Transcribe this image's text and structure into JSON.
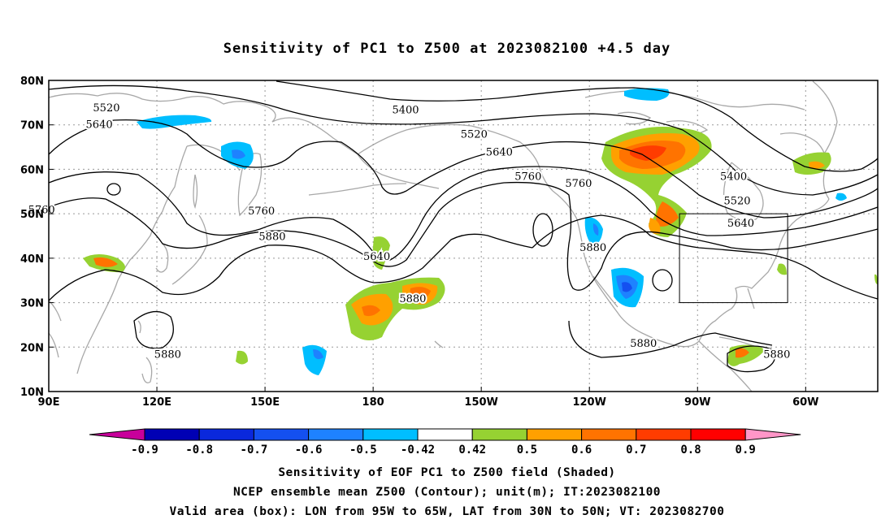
{
  "title": "Sensitivity of PC1 to Z500 at 2023082100 +4.5 day",
  "map": {
    "lat_labels": [
      "80N",
      "70N",
      "60N",
      "50N",
      "40N",
      "30N",
      "20N",
      "10N"
    ],
    "lon_labels": [
      "90E",
      "120E",
      "150E",
      "180",
      "150W",
      "120W",
      "90W",
      "60W"
    ],
    "contour_labels": [
      {
        "text": "5520",
        "lon": 106,
        "lat": 74.0
      },
      {
        "text": "5640",
        "lon": 104,
        "lat": 70.2
      },
      {
        "text": "5400",
        "lon": -171,
        "lat": 73.5
      },
      {
        "text": "5520",
        "lon": -152,
        "lat": 68.0
      },
      {
        "text": "5640",
        "lon": -145,
        "lat": 64.0
      },
      {
        "text": "5760",
        "lon": -137,
        "lat": 58.5
      },
      {
        "text": "5760",
        "lon": -123,
        "lat": 57.0
      },
      {
        "text": "5400",
        "lon": -80,
        "lat": 58.5
      },
      {
        "text": "5520",
        "lon": -79,
        "lat": 53.0
      },
      {
        "text": "5640",
        "lon": -78,
        "lat": 48.0
      },
      {
        "text": "5760",
        "lon": 88,
        "lat": 51.0
      },
      {
        "text": "5760",
        "lon": 149,
        "lat": 50.8
      },
      {
        "text": "5880",
        "lon": 152,
        "lat": 45.0
      },
      {
        "text": "5640",
        "lon": -179,
        "lat": 40.5
      },
      {
        "text": "5880",
        "lon": -169,
        "lat": 31.0
      },
      {
        "text": "5880",
        "lon": -119,
        "lat": 42.5
      },
      {
        "text": "5880",
        "lon": -105,
        "lat": 21.0
      },
      {
        "text": "5880",
        "lon": 123,
        "lat": 18.5
      },
      {
        "text": "5880",
        "lon": -68,
        "lat": 18.5
      }
    ],
    "valid_box": {
      "lon_min": -95,
      "lon_max": -65,
      "lat_min": 30,
      "lat_max": 50
    }
  },
  "colorbar": {
    "labels": [
      "-0.9",
      "-0.8",
      "-0.7",
      "-0.6",
      "-0.5",
      "-0.42",
      "0.42",
      "0.5",
      "0.6",
      "0.7",
      "0.8",
      "0.9"
    ],
    "colors": [
      "#0000b4",
      "#0a28dc",
      "#1450f0",
      "#1e82ff",
      "#00beff",
      "#ffffff",
      "#96d232",
      "#ffa000",
      "#ff7300",
      "#ff3c00",
      "#ff0000"
    ],
    "under_color": "#c8009b",
    "over_color": "#ff96c8"
  },
  "captions": [
    "Sensitivity of EOF PC1 to Z500 field (Shaded)",
    "NCEP ensemble mean Z500 (Contour); unit(m); IT:2023082100",
    "Valid area (box): LON from 95W to 65W, LAT from 30N to 50N; VT: 2023082700"
  ]
}
